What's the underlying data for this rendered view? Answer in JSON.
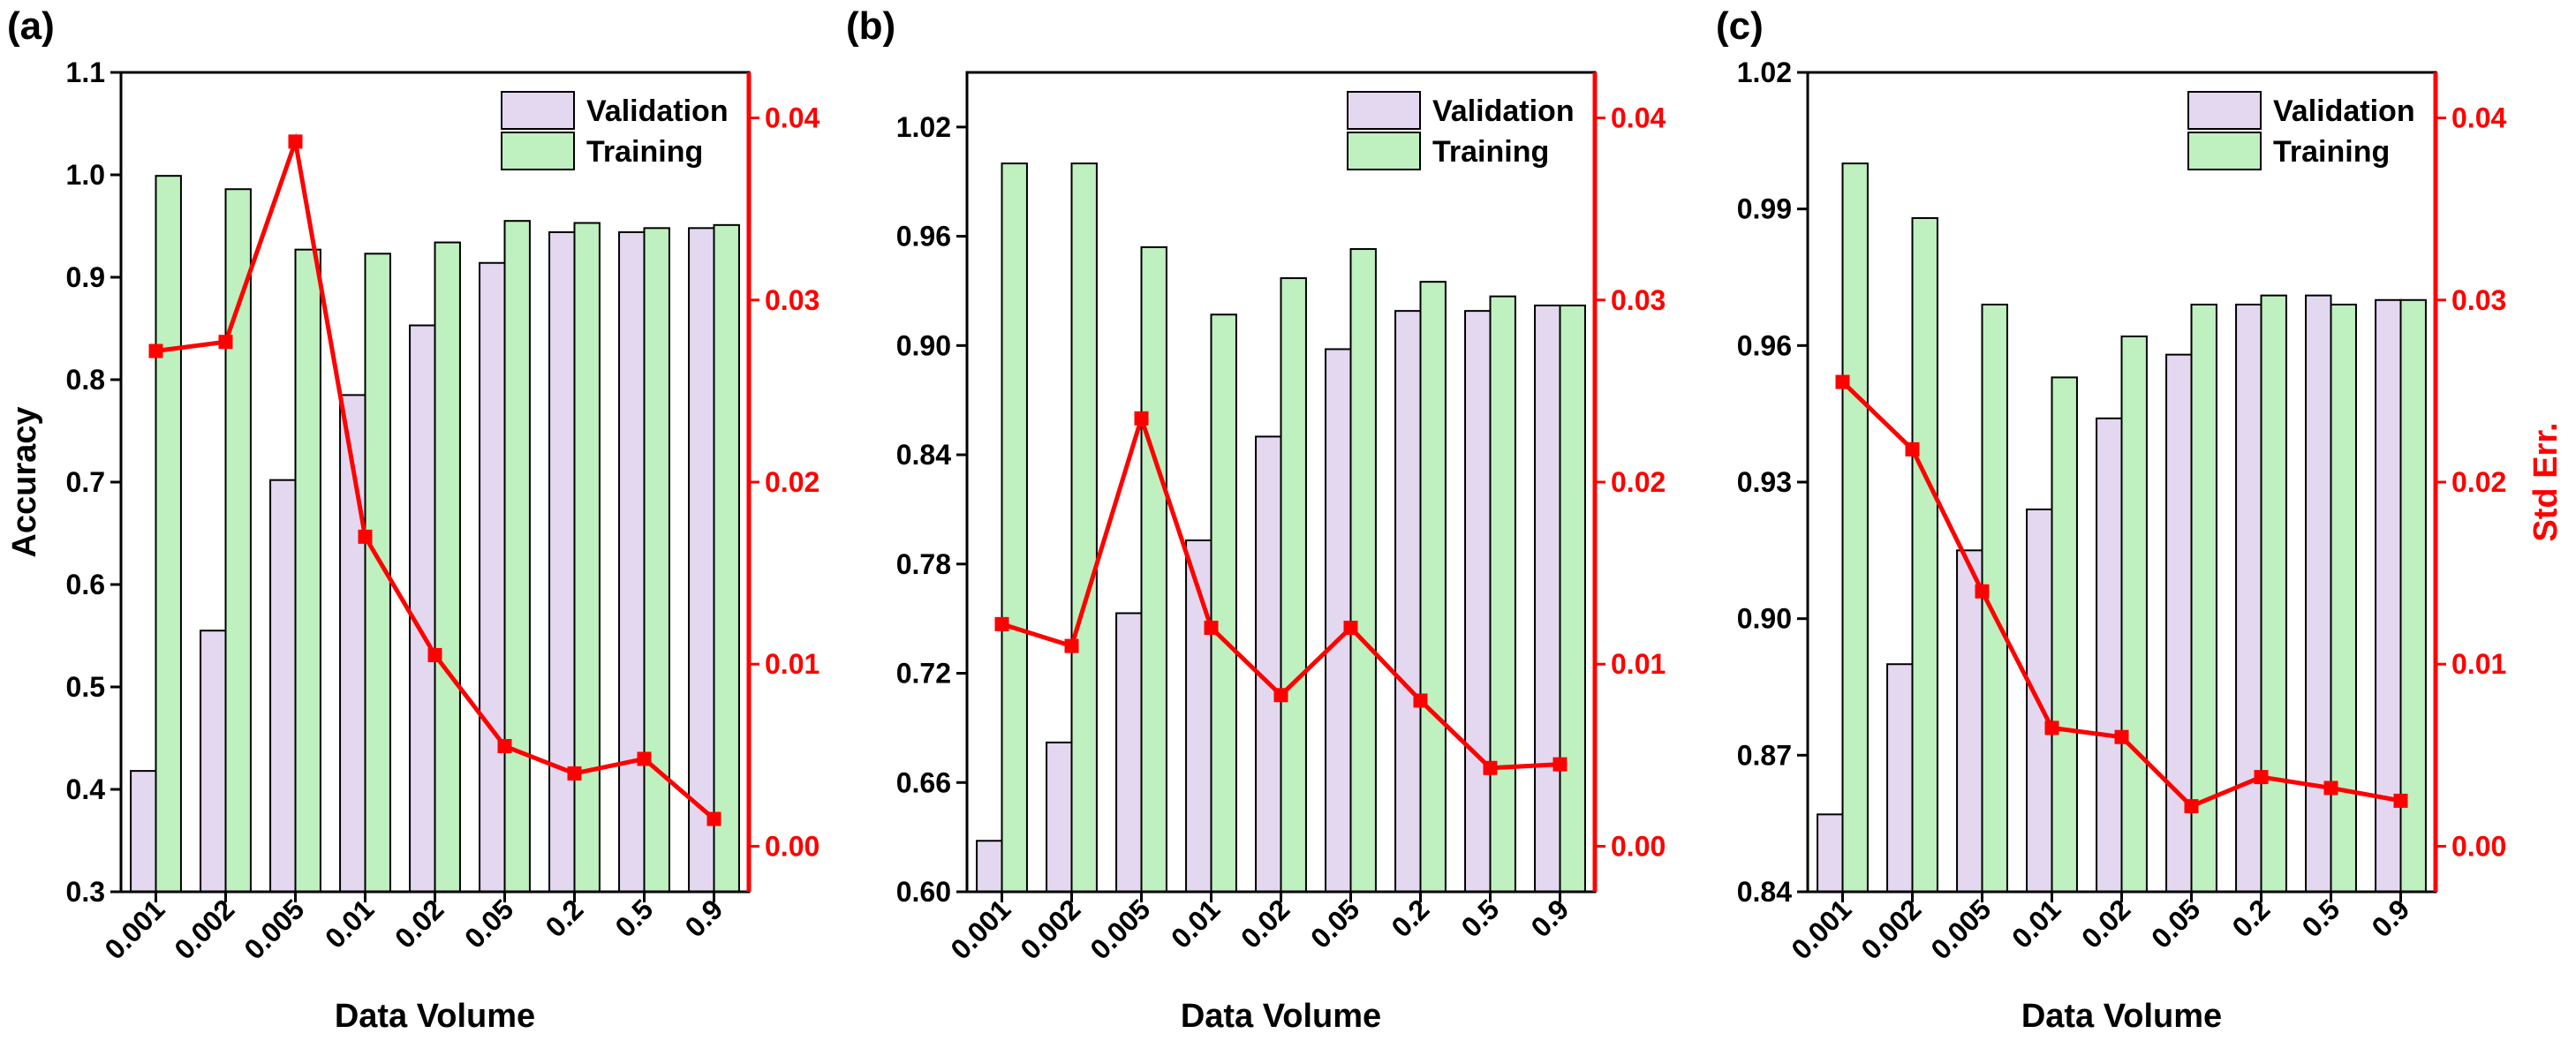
{
  "chart_data": [
    {
      "type": "bar",
      "panel_label": "(a)",
      "categories": [
        "0.001",
        "0.002",
        "0.005",
        "0.01",
        "0.02",
        "0.05",
        "0.2",
        "0.5",
        "0.9"
      ],
      "xlabel": "Data Volume",
      "ylabel": "Accuracy",
      "ylabel_right": "",
      "ylim": [
        0.3,
        1.1
      ],
      "yticks": [
        0.3,
        0.4,
        0.5,
        0.6,
        0.7,
        0.8,
        0.9,
        1.0,
        1.1
      ],
      "ytick_labels": [
        "0.3",
        "0.4",
        "0.5",
        "0.6",
        "0.7",
        "0.8",
        "0.9",
        "1.0",
        "1.1"
      ],
      "ylim_right": [
        -0.0025,
        0.0425
      ],
      "yticks_right": [
        0.0,
        0.01,
        0.02,
        0.03,
        0.04
      ],
      "ytick_labels_right": [
        "0.00",
        "0.01",
        "0.02",
        "0.03",
        "0.04"
      ],
      "series": [
        {
          "name": "Validation",
          "type": "bar",
          "values": [
            0.418,
            0.555,
            0.702,
            0.785,
            0.853,
            0.914,
            0.944,
            0.944,
            0.948
          ]
        },
        {
          "name": "Training",
          "type": "bar",
          "values": [
            0.999,
            0.986,
            0.927,
            0.923,
            0.934,
            0.955,
            0.953,
            0.948,
            0.951
          ]
        },
        {
          "name": "Std Err.",
          "type": "line",
          "axis": "right",
          "values": [
            0.0272,
            0.0277,
            0.0387,
            0.017,
            0.0105,
            0.0055,
            0.004,
            0.0048,
            0.0015
          ]
        }
      ],
      "legend": [
        "Validation",
        "Training"
      ]
    },
    {
      "type": "bar",
      "panel_label": "(b)",
      "categories": [
        "0.001",
        "0.002",
        "0.005",
        "0.01",
        "0.02",
        "0.05",
        "0.2",
        "0.5",
        "0.9"
      ],
      "xlabel": "Data Volume",
      "ylabel": "",
      "ylabel_right": "",
      "ylim": [
        0.6,
        1.05
      ],
      "yticks": [
        0.6,
        0.66,
        0.72,
        0.78,
        0.84,
        0.9,
        0.96,
        1.02
      ],
      "ytick_labels": [
        "0.60",
        "0.66",
        "0.72",
        "0.78",
        "0.84",
        "0.90",
        "0.96",
        "1.02"
      ],
      "ylim_right": [
        -0.0025,
        0.0425
      ],
      "yticks_right": [
        0.0,
        0.01,
        0.02,
        0.03,
        0.04
      ],
      "ytick_labels_right": [
        "0.00",
        "0.01",
        "0.02",
        "0.03",
        "0.04"
      ],
      "series": [
        {
          "name": "Validation",
          "type": "bar",
          "values": [
            0.628,
            0.682,
            0.753,
            0.793,
            0.85,
            0.898,
            0.919,
            0.919,
            0.922
          ]
        },
        {
          "name": "Training",
          "type": "bar",
          "values": [
            1.0,
            1.0,
            0.954,
            0.917,
            0.937,
            0.953,
            0.935,
            0.927,
            0.922
          ]
        },
        {
          "name": "Std Err.",
          "type": "line",
          "axis": "right",
          "values": [
            0.0122,
            0.011,
            0.0235,
            0.012,
            0.0083,
            0.012,
            0.008,
            0.0043,
            0.0045
          ]
        }
      ],
      "legend": [
        "Validation",
        "Training"
      ]
    },
    {
      "type": "bar",
      "panel_label": "(c)",
      "categories": [
        "0.001",
        "0.002",
        "0.005",
        "0.01",
        "0.02",
        "0.05",
        "0.2",
        "0.5",
        "0.9"
      ],
      "xlabel": "Data Volume",
      "ylabel": "",
      "ylabel_right": "Std Err.",
      "ylim": [
        0.84,
        1.02
      ],
      "yticks": [
        0.84,
        0.87,
        0.9,
        0.93,
        0.96,
        0.99,
        1.02
      ],
      "ytick_labels": [
        "0.84",
        "0.87",
        "0.90",
        "0.93",
        "0.96",
        "0.99",
        "1.02"
      ],
      "ylim_right": [
        -0.0025,
        0.0425
      ],
      "yticks_right": [
        0.0,
        0.01,
        0.02,
        0.03,
        0.04
      ],
      "ytick_labels_right": [
        "0.00",
        "0.01",
        "0.02",
        "0.03",
        "0.04"
      ],
      "series": [
        {
          "name": "Validation",
          "type": "bar",
          "values": [
            0.857,
            0.89,
            0.915,
            0.924,
            0.944,
            0.958,
            0.969,
            0.971,
            0.97
          ]
        },
        {
          "name": "Training",
          "type": "bar",
          "values": [
            1.0,
            0.988,
            0.969,
            0.953,
            0.962,
            0.969,
            0.971,
            0.969,
            0.97
          ]
        },
        {
          "name": "Std Err.",
          "type": "line",
          "axis": "right",
          "values": [
            0.0255,
            0.0218,
            0.014,
            0.0065,
            0.006,
            0.0022,
            0.0038,
            0.0032,
            0.0025
          ]
        }
      ],
      "legend": [
        "Validation",
        "Training"
      ]
    }
  ]
}
